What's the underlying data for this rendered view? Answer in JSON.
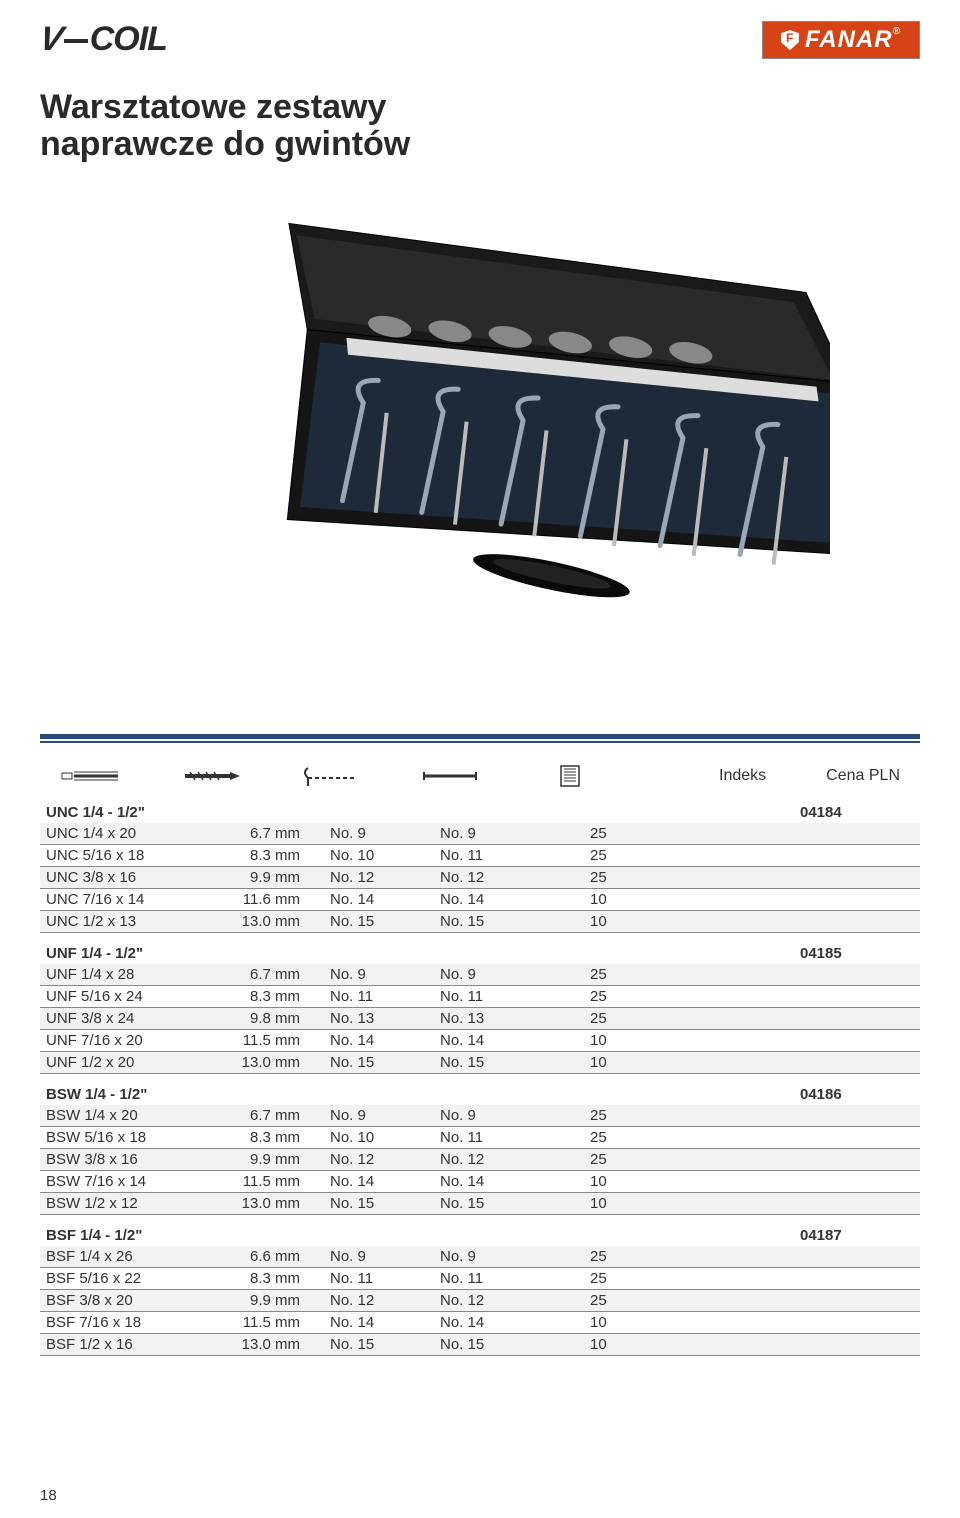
{
  "header": {
    "vcoil_text": "V-COIL",
    "fanar_text": "FANAR"
  },
  "title_line1": "Warsztatowe zestawy",
  "title_line2": "naprawcze do gwintów",
  "labels": {
    "indeks": "Indeks",
    "cena": "Cena PLN"
  },
  "groups": [
    {
      "title": "UNC 1/4 - 1/2\"",
      "index": "04184",
      "rows": [
        {
          "c0": "UNC 1/4 x 20",
          "c1": "6.7 mm",
          "c2": "No.  9",
          "c3": "No.  9",
          "c4": "25"
        },
        {
          "c0": "UNC 5/16 x 18",
          "c1": "8.3 mm",
          "c2": "No. 10",
          "c3": "No. 11",
          "c4": "25"
        },
        {
          "c0": "UNC 3/8 x 16",
          "c1": "9.9 mm",
          "c2": "No. 12",
          "c3": "No. 12",
          "c4": "25"
        },
        {
          "c0": "UNC 7/16 x 14",
          "c1": "11.6 mm",
          "c2": "No. 14",
          "c3": "No. 14",
          "c4": "10"
        },
        {
          "c0": "UNC 1/2 x 13",
          "c1": "13.0 mm",
          "c2": "No. 15",
          "c3": "No. 15",
          "c4": "10"
        }
      ]
    },
    {
      "title": "UNF 1/4 - 1/2\"",
      "index": "04185",
      "rows": [
        {
          "c0": "UNF 1/4 x 28",
          "c1": "6.7 mm",
          "c2": "No.  9",
          "c3": "No.  9",
          "c4": "25"
        },
        {
          "c0": "UNF 5/16 x 24",
          "c1": "8.3 mm",
          "c2": "No. 11",
          "c3": "No. 11",
          "c4": "25"
        },
        {
          "c0": "UNF 3/8 x 24",
          "c1": "9.8 mm",
          "c2": "No. 13",
          "c3": "No. 13",
          "c4": "25"
        },
        {
          "c0": "UNF 7/16 x 20",
          "c1": "11.5 mm",
          "c2": "No. 14",
          "c3": "No. 14",
          "c4": "10"
        },
        {
          "c0": "UNF 1/2 x 20",
          "c1": "13.0 mm",
          "c2": "No. 15",
          "c3": "No. 15",
          "c4": "10"
        }
      ]
    },
    {
      "title": "BSW 1/4 - 1/2\"",
      "index": "04186",
      "rows": [
        {
          "c0": "BSW 1/4 x 20",
          "c1": "6.7 mm",
          "c2": "No.  9",
          "c3": "No.  9",
          "c4": "25"
        },
        {
          "c0": "BSW 5/16 x 18",
          "c1": "8.3 mm",
          "c2": "No. 10",
          "c3": "No. 11",
          "c4": "25"
        },
        {
          "c0": "BSW 3/8 x 16",
          "c1": "9.9 mm",
          "c2": "No. 12",
          "c3": "No. 12",
          "c4": "25"
        },
        {
          "c0": "BSW 7/16 x 14",
          "c1": "11.5 mm",
          "c2": "No. 14",
          "c3": "No. 14",
          "c4": "10"
        },
        {
          "c0": "BSW 1/2  x 12",
          "c1": "13.0 mm",
          "c2": "No. 15",
          "c3": "No. 15",
          "c4": "10"
        }
      ]
    },
    {
      "title": "BSF 1/4 - 1/2\"",
      "index": "04187",
      "rows": [
        {
          "c0": "BSF 1/4 x 26",
          "c1": "6.6 mm",
          "c2": "No.  9",
          "c3": "No.  9",
          "c4": "25"
        },
        {
          "c0": "BSF 5/16 x 22",
          "c1": "8.3 mm",
          "c2": "No. 11",
          "c3": "No. 11",
          "c4": "25"
        },
        {
          "c0": "BSF 3/8 x 20",
          "c1": "9.9 mm",
          "c2": "No. 12",
          "c3": "No. 12",
          "c4": "25"
        },
        {
          "c0": "BSF 7/16 x 18",
          "c1": "11.5 mm",
          "c2": "No. 14",
          "c3": "No. 14",
          "c4": "10"
        },
        {
          "c0": "BSF 1/2 x 16",
          "c1": "13.0 mm",
          "c2": "No. 15",
          "c3": "No. 15",
          "c4": "10"
        }
      ]
    }
  ],
  "page_number": "18",
  "styling": {
    "brand_color": "#d84315",
    "separator_color": "#2a4a7a",
    "row_alt_bg": "#f2f2f2",
    "border_color": "#888888",
    "text_color": "#333333",
    "title_fontsize": 34,
    "table_fontsize": 15
  }
}
